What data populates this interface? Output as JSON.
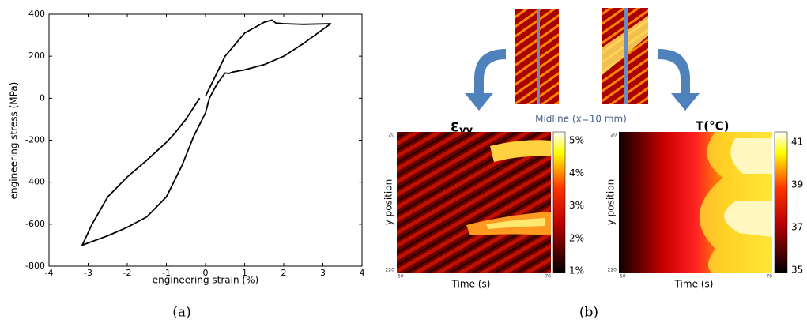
{
  "chart_data": {
    "type": "line",
    "xlabel": "engineering strain (%)",
    "ylabel": "engineering stress (MPa)",
    "x": [
      -0.15,
      -0.5,
      -0.8,
      -1,
      -1.5,
      -2,
      -2.5,
      -2.9,
      -3.15,
      -2.5,
      -2,
      -1.5,
      -1,
      -0.6,
      -0.3,
      0,
      0.1,
      0.3,
      0.5,
      0.6,
      0.7,
      1,
      1.5,
      2,
      2.5,
      3.2,
      2.5,
      2,
      1.8,
      1.7,
      1.5,
      1,
      0.5,
      0.2,
      0
    ],
    "values": [
      0,
      -100,
      -170,
      -210,
      -295,
      -375,
      -470,
      -600,
      -700,
      -655,
      -615,
      -565,
      -470,
      -320,
      -180,
      -70,
      0,
      70,
      120,
      118,
      125,
      135,
      160,
      200,
      260,
      355,
      352,
      355,
      358,
      372,
      362,
      310,
      200,
      85,
      10
    ],
    "color": "#000000",
    "xlim": [
      -4,
      4
    ],
    "xticks": [
      -4,
      -3,
      -2,
      -1,
      0,
      1,
      2,
      3,
      4
    ],
    "ylim": [
      -800,
      400
    ],
    "yticks": [
      -800,
      -600,
      -400,
      -200,
      0,
      200,
      400
    ]
  },
  "panel_b": {
    "strain_label": "ε",
    "strain_sub": "yy",
    "midline": "Midline (x=10 mm)",
    "temp_label": "T(°C)",
    "ylabel": "y position",
    "xlabel": "Time (s)",
    "y_top": "20",
    "y_bottom": "220",
    "x_left": "50",
    "x_right": "70",
    "strain_scale": [
      "5%",
      "4%",
      "3%",
      "2%",
      "1%"
    ],
    "temp_scale": [
      "41",
      "39",
      "37",
      "35"
    ]
  },
  "captions": [
    "(a)",
    "(b)"
  ]
}
